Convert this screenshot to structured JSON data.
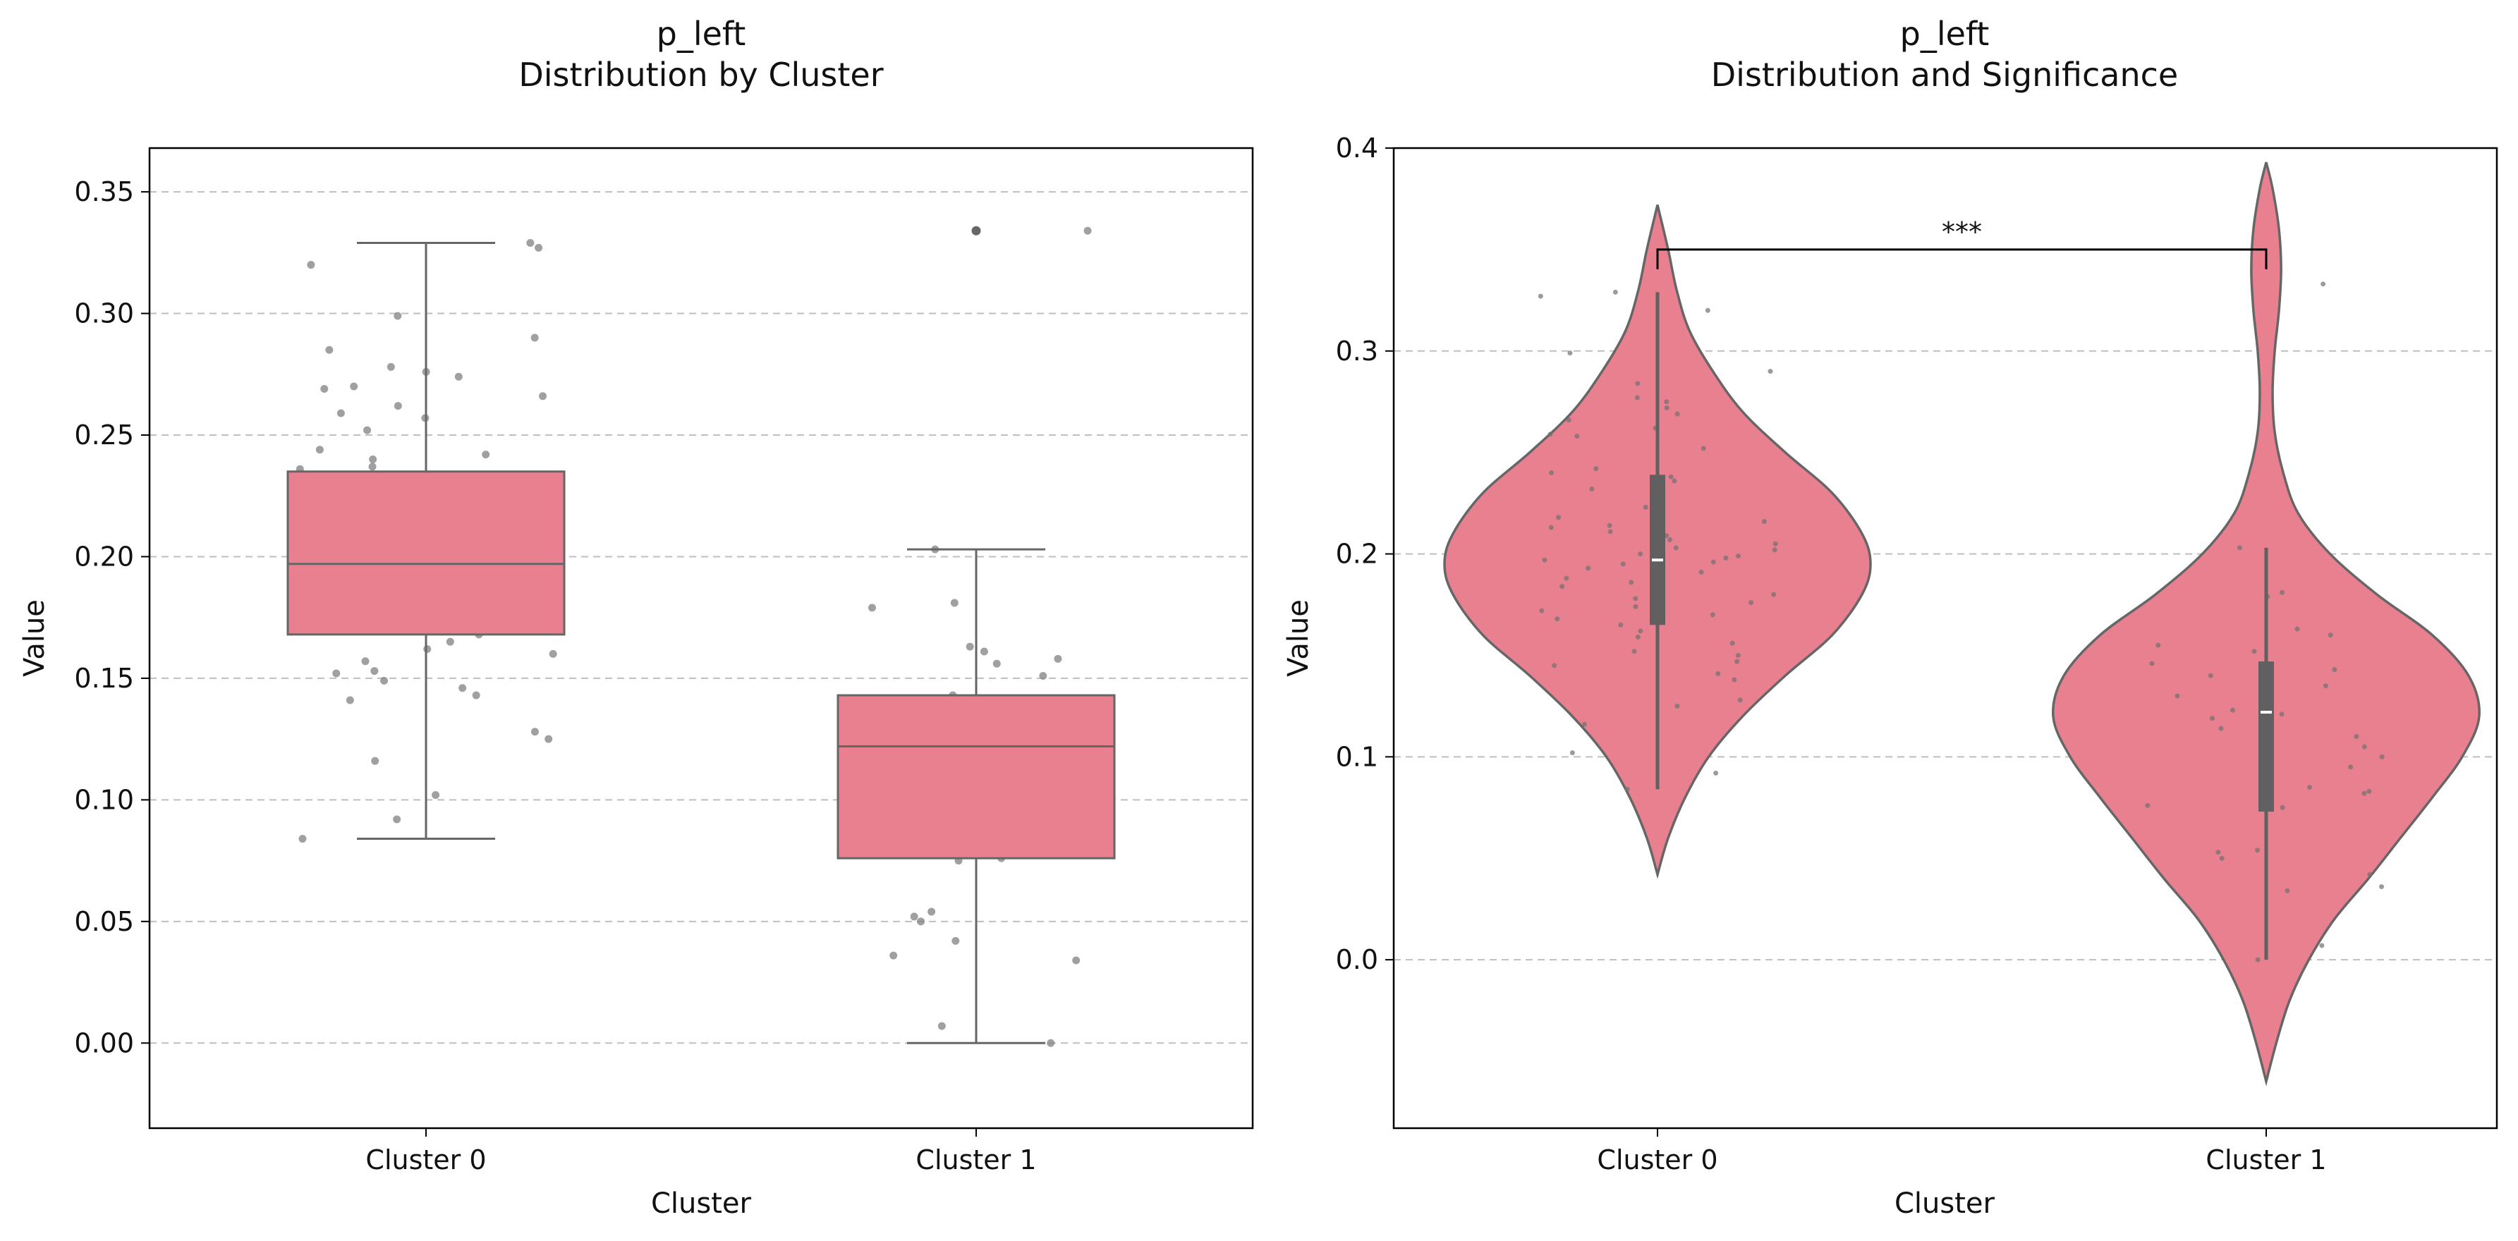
{
  "chart_data": [
    {
      "type": "box",
      "title_line1": "p_left",
      "title_line2": "Distribution by Cluster",
      "xlabel": "Cluster",
      "ylabel": "Value",
      "categories": [
        "Cluster 0",
        "Cluster 1"
      ],
      "ylim": [
        -0.035,
        0.368
      ],
      "yticks": [
        0.0,
        0.05,
        0.1,
        0.15,
        0.2,
        0.25,
        0.3,
        0.35
      ],
      "ytick_labels": [
        "0.00",
        "0.05",
        "0.10",
        "0.15",
        "0.20",
        "0.25",
        "0.30",
        "0.35"
      ],
      "grid": "y-dashed",
      "box_color": "#e8808f",
      "boxes": [
        {
          "category": "Cluster 0",
          "whisker_low": 0.084,
          "q1": 0.168,
          "median": 0.197,
          "q3": 0.235,
          "whisker_high": 0.329,
          "outliers": []
        },
        {
          "category": "Cluster 1",
          "whisker_low": 0.0,
          "q1": 0.076,
          "median": 0.122,
          "q3": 0.143,
          "whisker_high": 0.203,
          "outliers": [
            0.334
          ]
        }
      ],
      "points": [
        {
          "category": "Cluster 0",
          "values": [
            0.329,
            0.327,
            0.32,
            0.299,
            0.29,
            0.285,
            0.278,
            0.276,
            0.274,
            0.27,
            0.269,
            0.266,
            0.262,
            0.259,
            0.257,
            0.252,
            0.244,
            0.242,
            0.24,
            0.237,
            0.236,
            0.232,
            0.228,
            0.226,
            0.223,
            0.218,
            0.216,
            0.214,
            0.213,
            0.212,
            0.211,
            0.209,
            0.207,
            0.205,
            0.204,
            0.203,
            0.202,
            0.2,
            0.199,
            0.198,
            0.197,
            0.196,
            0.195,
            0.194,
            0.192,
            0.19,
            0.188,
            0.186,
            0.184,
            0.182,
            0.18,
            0.178,
            0.176,
            0.174,
            0.172,
            0.17,
            0.168,
            0.165,
            0.162,
            0.16,
            0.157,
            0.153,
            0.152,
            0.149,
            0.146,
            0.143,
            0.141,
            0.128,
            0.125,
            0.116,
            0.102,
            0.092,
            0.084
          ]
        },
        {
          "category": "Cluster 1",
          "values": [
            0.334,
            0.203,
            0.181,
            0.179,
            0.163,
            0.161,
            0.158,
            0.156,
            0.151,
            0.143,
            0.141,
            0.135,
            0.13,
            0.124,
            0.123,
            0.123,
            0.122,
            0.122,
            0.121,
            0.114,
            0.109,
            0.104,
            0.1,
            0.095,
            0.085,
            0.083,
            0.081,
            0.076,
            0.075,
            0.054,
            0.052,
            0.05,
            0.042,
            0.036,
            0.034,
            0.007,
            0.0
          ]
        }
      ]
    },
    {
      "type": "violin",
      "title_line1": "p_left",
      "title_line2": "Distribution and Significance",
      "xlabel": "Cluster",
      "ylabel": "Value",
      "categories": [
        "Cluster 0",
        "Cluster 1"
      ],
      "ylim": [
        -0.083,
        0.4
      ],
      "yticks": [
        0.0,
        0.1,
        0.2,
        0.3,
        0.4
      ],
      "ytick_labels": [
        "0.0",
        "0.1",
        "0.2",
        "0.3",
        "0.4"
      ],
      "grid": "y-dashed",
      "violin_color": "#e8808f",
      "violins": [
        {
          "category": "Cluster 0",
          "q1": 0.165,
          "median": 0.197,
          "q3": 0.239,
          "whisker_low": 0.084,
          "whisker_high": 0.329,
          "density": [
            [
              0.042,
              0.0
            ],
            [
              0.06,
              0.05
            ],
            [
              0.08,
              0.13
            ],
            [
              0.1,
              0.24
            ],
            [
              0.12,
              0.4
            ],
            [
              0.14,
              0.6
            ],
            [
              0.16,
              0.82
            ],
            [
              0.18,
              0.96
            ],
            [
              0.195,
              1.0
            ],
            [
              0.21,
              0.96
            ],
            [
              0.23,
              0.82
            ],
            [
              0.25,
              0.6
            ],
            [
              0.27,
              0.4
            ],
            [
              0.29,
              0.26
            ],
            [
              0.31,
              0.15
            ],
            [
              0.33,
              0.09
            ],
            [
              0.35,
              0.05
            ],
            [
              0.372,
              0.0
            ]
          ]
        },
        {
          "category": "Cluster 1",
          "q1": 0.073,
          "median": 0.122,
          "q3": 0.147,
          "whisker_low": 0.0,
          "whisker_high": 0.203,
          "density": [
            [
              -0.06,
              0.0
            ],
            [
              -0.04,
              0.05
            ],
            [
              -0.02,
              0.11
            ],
            [
              0.0,
              0.2
            ],
            [
              0.02,
              0.32
            ],
            [
              0.04,
              0.48
            ],
            [
              0.06,
              0.63
            ],
            [
              0.08,
              0.78
            ],
            [
              0.1,
              0.92
            ],
            [
              0.12,
              1.0
            ],
            [
              0.14,
              0.95
            ],
            [
              0.16,
              0.78
            ],
            [
              0.18,
              0.52
            ],
            [
              0.2,
              0.3
            ],
            [
              0.22,
              0.15
            ],
            [
              0.24,
              0.08
            ],
            [
              0.26,
              0.04
            ],
            [
              0.28,
              0.03
            ],
            [
              0.3,
              0.04
            ],
            [
              0.32,
              0.06
            ],
            [
              0.34,
              0.07
            ],
            [
              0.36,
              0.06
            ],
            [
              0.38,
              0.03
            ],
            [
              0.393,
              0.0
            ]
          ]
        }
      ],
      "points": [
        {
          "category": "Cluster 0",
          "values": [
            0.329,
            0.327,
            0.32,
            0.299,
            0.29,
            0.284,
            0.277,
            0.275,
            0.272,
            0.269,
            0.266,
            0.262,
            0.259,
            0.258,
            0.252,
            0.242,
            0.24,
            0.238,
            0.236,
            0.232,
            0.226,
            0.223,
            0.218,
            0.216,
            0.214,
            0.213,
            0.211,
            0.209,
            0.207,
            0.205,
            0.203,
            0.202,
            0.2,
            0.199,
            0.198,
            0.197,
            0.196,
            0.195,
            0.193,
            0.191,
            0.188,
            0.186,
            0.184,
            0.182,
            0.18,
            0.178,
            0.176,
            0.174,
            0.172,
            0.17,
            0.168,
            0.165,
            0.162,
            0.159,
            0.156,
            0.152,
            0.15,
            0.147,
            0.145,
            0.141,
            0.138,
            0.128,
            0.125,
            0.116,
            0.102,
            0.092,
            0.084
          ]
        },
        {
          "category": "Cluster 1",
          "values": [
            0.333,
            0.203,
            0.181,
            0.179,
            0.163,
            0.16,
            0.155,
            0.152,
            0.146,
            0.143,
            0.14,
            0.135,
            0.13,
            0.124,
            0.123,
            0.122,
            0.121,
            0.119,
            0.114,
            0.11,
            0.105,
            0.1,
            0.095,
            0.085,
            0.083,
            0.082,
            0.076,
            0.075,
            0.054,
            0.053,
            0.05,
            0.042,
            0.036,
            0.034,
            0.007,
            0.0
          ]
        }
      ],
      "significance": {
        "groups": [
          "Cluster 0",
          "Cluster 1"
        ],
        "y": 0.35,
        "label": "***"
      }
    }
  ]
}
